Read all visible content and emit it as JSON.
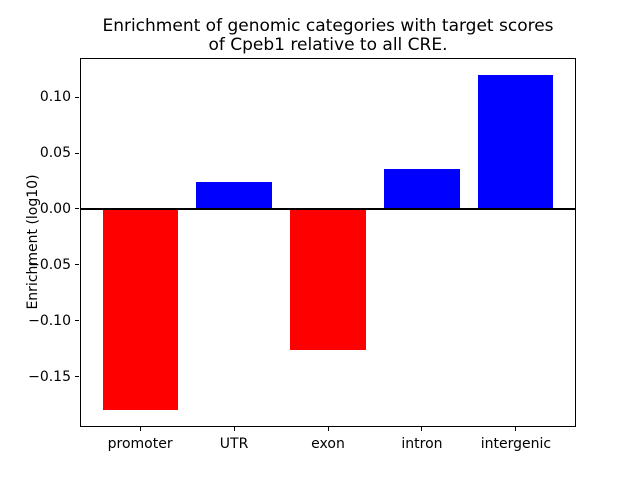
{
  "chart_data": {
    "type": "bar",
    "title": "Enrichment of genomic categories with target scores\nof Cpeb1 relative to all CRE.",
    "xlabel": "",
    "ylabel": "Enrichment (log10)",
    "categories": [
      "promoter",
      "UTR",
      "exon",
      "intron",
      "intergenic"
    ],
    "values": [
      -0.18,
      0.024,
      -0.126,
      0.036,
      0.12
    ],
    "yticks": [
      0.1,
      0.05,
      0.0,
      -0.05,
      -0.1,
      -0.15
    ],
    "ylim": [
      -0.195,
      0.135
    ],
    "xlim": [
      -0.64,
      4.64
    ],
    "bar_width": 0.8,
    "bar_colors": {
      "positive": "#0000ff",
      "negative": "#ff0000"
    },
    "zero_line": true,
    "grid": false,
    "legend": "none",
    "plot_background": "#ffffff",
    "axis_color": "#000000",
    "text_color": "#000000"
  }
}
